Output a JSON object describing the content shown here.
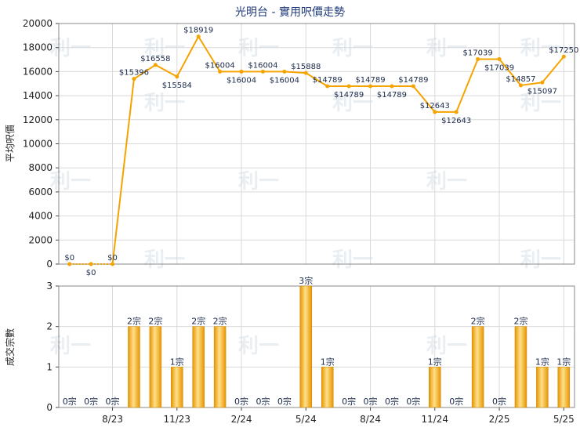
{
  "chart_data": [
    {
      "type": "line",
      "title": "光明台 - 實用呎價走勢",
      "ylabel": "平均呎價",
      "ylim": [
        0,
        20000
      ],
      "yticks": [
        "0",
        "2000",
        "4000",
        "6000",
        "8000",
        "10000",
        "12000",
        "14000",
        "16000",
        "18000",
        "20000"
      ],
      "grid": true,
      "color": "#f5a300",
      "values": [
        0,
        0,
        0,
        15396,
        16558,
        15584,
        18919,
        16004,
        16004,
        16004,
        16004,
        15888,
        14789,
        14789,
        14789,
        14789,
        14789,
        12643,
        12643,
        17039,
        17039,
        14857,
        15097,
        17250
      ],
      "labels": [
        "$0",
        "$0",
        "$0",
        "$15396",
        "$16558",
        "$15584",
        "$18919",
        "$16004",
        "$16004",
        "$16004",
        "$16004",
        "$15888",
        "$14789",
        "$14789",
        "$14789",
        "$14789",
        "$14789",
        "$12643",
        "$12643",
        "$17039",
        "$17039",
        "$14857",
        "$15097",
        "$17250"
      ]
    },
    {
      "type": "bar",
      "ylabel": "成交宗數",
      "ylim": [
        0,
        3
      ],
      "yticks": [
        "0",
        "1",
        "2",
        "3"
      ],
      "grid": true,
      "color": "#f5a300",
      "values": [
        0,
        0,
        0,
        2,
        2,
        1,
        2,
        2,
        0,
        0,
        0,
        3,
        1,
        0,
        0,
        0,
        0,
        1,
        0,
        2,
        0,
        2,
        1,
        1
      ],
      "labels": [
        "0宗",
        "0宗",
        "0宗",
        "2宗",
        "2宗",
        "1宗",
        "2宗",
        "2宗",
        "0宗",
        "0宗",
        "0宗",
        "3宗",
        "1宗",
        "0宗",
        "0宗",
        "0宗",
        "0宗",
        "1宗",
        "0宗",
        "2宗",
        "0宗",
        "2宗",
        "1宗",
        "1宗"
      ]
    }
  ],
  "x_axis": {
    "tick_labels": [
      "8/23",
      "11/23",
      "2/24",
      "5/24",
      "8/24",
      "11/24",
      "2/25",
      "5/25"
    ],
    "tick_index": [
      2,
      5,
      8,
      11,
      14,
      17,
      20,
      23
    ]
  },
  "watermark": "利一"
}
